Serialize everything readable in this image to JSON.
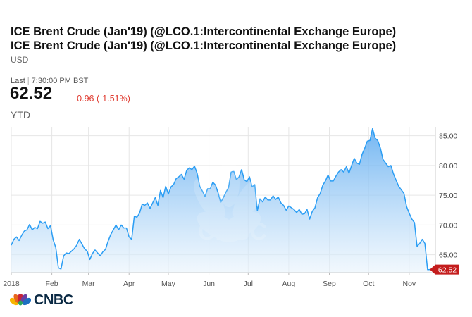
{
  "header": {
    "title": "ICE Brent Crude (Jan'19) (@LCO.1:Intercontinental Exchange Europe)",
    "title_repeat": "ICE Brent Crude (Jan'19) (@LCO.1:Intercontinental Exchange Europe)",
    "currency": "USD",
    "last_label": "Last",
    "last_time": "7:30:00 PM BST",
    "price": "62.52",
    "change": "-0.96 (-1.51%)",
    "range": "YTD"
  },
  "colors": {
    "line": "#2a9df4",
    "area_top": "#5aa9f0",
    "area_bottom": "#e8f3fc",
    "grid": "#e6e6e6",
    "price_tag": "#c41d1d",
    "change_negative": "#e03c31"
  },
  "branding": {
    "logo_text": "CNBC",
    "watermark": "CNBC"
  },
  "chart_data": {
    "type": "area",
    "title": "",
    "xlabel": "",
    "ylabel": "",
    "ylim": [
      62.0,
      86.5
    ],
    "y_ticks": [
      65.0,
      70.0,
      75.0,
      80.0,
      85.0
    ],
    "y_tick_labels": [
      "65.00",
      "70.00",
      "75.00",
      "80.00",
      "85.00"
    ],
    "x_tick_labels": [
      "2018",
      "Feb",
      "Mar",
      "Apr",
      "May",
      "Jun",
      "Jul",
      "Aug",
      "Sep",
      "Oct",
      "Nov"
    ],
    "x_tick_days": [
      0,
      31,
      59,
      90,
      120,
      151,
      181,
      212,
      243,
      273,
      304
    ],
    "x_range_days": [
      0,
      324
    ],
    "y_axis_position": "right",
    "grid": true,
    "last_value": 62.52,
    "last_value_label": "62.52",
    "series": [
      {
        "values": [
          [
            0,
            66.6
          ],
          [
            2,
            67.6
          ],
          [
            4,
            68.0
          ],
          [
            6,
            67.4
          ],
          [
            8,
            68.3
          ],
          [
            10,
            69.0
          ],
          [
            12,
            69.2
          ],
          [
            14,
            70.1
          ],
          [
            16,
            69.2
          ],
          [
            18,
            69.6
          ],
          [
            20,
            69.4
          ],
          [
            22,
            70.6
          ],
          [
            24,
            70.3
          ],
          [
            26,
            70.5
          ],
          [
            28,
            69.4
          ],
          [
            30,
            69.9
          ],
          [
            32,
            67.5
          ],
          [
            34,
            66.2
          ],
          [
            36,
            62.8
          ],
          [
            38,
            62.6
          ],
          [
            40,
            64.8
          ],
          [
            42,
            65.3
          ],
          [
            44,
            65.2
          ],
          [
            46,
            65.6
          ],
          [
            48,
            66.0
          ],
          [
            50,
            66.6
          ],
          [
            52,
            67.6
          ],
          [
            54,
            66.8
          ],
          [
            56,
            66.0
          ],
          [
            58,
            65.6
          ],
          [
            60,
            64.2
          ],
          [
            62,
            65.2
          ],
          [
            64,
            65.8
          ],
          [
            66,
            65.3
          ],
          [
            68,
            64.8
          ],
          [
            70,
            65.5
          ],
          [
            72,
            65.9
          ],
          [
            74,
            67.3
          ],
          [
            76,
            68.4
          ],
          [
            78,
            69.2
          ],
          [
            80,
            70.0
          ],
          [
            82,
            69.2
          ],
          [
            84,
            70.0
          ],
          [
            86,
            69.5
          ],
          [
            88,
            69.5
          ],
          [
            90,
            68.0
          ],
          [
            92,
            67.6
          ],
          [
            94,
            71.5
          ],
          [
            96,
            71.3
          ],
          [
            98,
            72.0
          ],
          [
            100,
            73.5
          ],
          [
            102,
            73.3
          ],
          [
            104,
            73.7
          ],
          [
            106,
            72.8
          ],
          [
            108,
            73.7
          ],
          [
            110,
            74.6
          ],
          [
            112,
            73.3
          ],
          [
            114,
            75.8
          ],
          [
            116,
            74.6
          ],
          [
            118,
            76.5
          ],
          [
            120,
            75.2
          ],
          [
            122,
            76.4
          ],
          [
            124,
            76.8
          ],
          [
            126,
            77.8
          ],
          [
            128,
            78.1
          ],
          [
            130,
            78.5
          ],
          [
            132,
            77.7
          ],
          [
            134,
            79.2
          ],
          [
            136,
            79.6
          ],
          [
            138,
            79.3
          ],
          [
            140,
            79.9
          ],
          [
            142,
            78.7
          ],
          [
            144,
            76.5
          ],
          [
            146,
            75.7
          ],
          [
            148,
            74.8
          ],
          [
            150,
            76.1
          ],
          [
            152,
            76.1
          ],
          [
            154,
            77.2
          ],
          [
            156,
            76.7
          ],
          [
            158,
            75.4
          ],
          [
            160,
            73.8
          ],
          [
            162,
            74.6
          ],
          [
            164,
            75.5
          ],
          [
            166,
            76.3
          ],
          [
            168,
            78.9
          ],
          [
            170,
            79.0
          ],
          [
            172,
            77.6
          ],
          [
            174,
            78.1
          ],
          [
            176,
            79.3
          ],
          [
            178,
            77.6
          ],
          [
            180,
            77.3
          ],
          [
            182,
            78.1
          ],
          [
            184,
            76.4
          ],
          [
            186,
            76.8
          ],
          [
            188,
            72.4
          ],
          [
            190,
            74.4
          ],
          [
            192,
            73.9
          ],
          [
            194,
            74.7
          ],
          [
            196,
            74.2
          ],
          [
            198,
            74.2
          ],
          [
            200,
            74.9
          ],
          [
            202,
            74.3
          ],
          [
            204,
            74.7
          ],
          [
            206,
            73.7
          ],
          [
            208,
            73.3
          ],
          [
            210,
            72.5
          ],
          [
            212,
            73.2
          ],
          [
            214,
            72.9
          ],
          [
            216,
            72.6
          ],
          [
            218,
            72.1
          ],
          [
            220,
            72.6
          ],
          [
            222,
            71.8
          ],
          [
            224,
            71.9
          ],
          [
            226,
            72.6
          ],
          [
            228,
            71.0
          ],
          [
            230,
            72.3
          ],
          [
            232,
            72.9
          ],
          [
            234,
            74.6
          ],
          [
            236,
            75.3
          ],
          [
            238,
            76.7
          ],
          [
            240,
            77.4
          ],
          [
            242,
            78.4
          ],
          [
            244,
            77.4
          ],
          [
            246,
            77.4
          ],
          [
            248,
            78.2
          ],
          [
            250,
            78.9
          ],
          [
            252,
            79.3
          ],
          [
            254,
            78.9
          ],
          [
            256,
            79.8
          ],
          [
            258,
            78.7
          ],
          [
            260,
            80.0
          ],
          [
            262,
            81.2
          ],
          [
            264,
            80.4
          ],
          [
            266,
            80.2
          ],
          [
            268,
            81.9
          ],
          [
            270,
            82.9
          ],
          [
            272,
            84.1
          ],
          [
            274,
            84.2
          ],
          [
            276,
            86.2
          ],
          [
            278,
            84.6
          ],
          [
            280,
            84.2
          ],
          [
            282,
            82.9
          ],
          [
            284,
            81.0
          ],
          [
            286,
            80.4
          ],
          [
            288,
            79.8
          ],
          [
            290,
            80.0
          ],
          [
            292,
            78.6
          ],
          [
            294,
            77.5
          ],
          [
            296,
            76.5
          ],
          [
            298,
            75.9
          ],
          [
            300,
            75.3
          ],
          [
            302,
            73.1
          ],
          [
            304,
            72.0
          ],
          [
            306,
            71.0
          ],
          [
            308,
            70.4
          ],
          [
            310,
            66.4
          ],
          [
            312,
            66.9
          ],
          [
            314,
            67.6
          ],
          [
            316,
            66.9
          ],
          [
            318,
            62.5
          ],
          [
            320,
            62.52
          ]
        ]
      }
    ]
  }
}
